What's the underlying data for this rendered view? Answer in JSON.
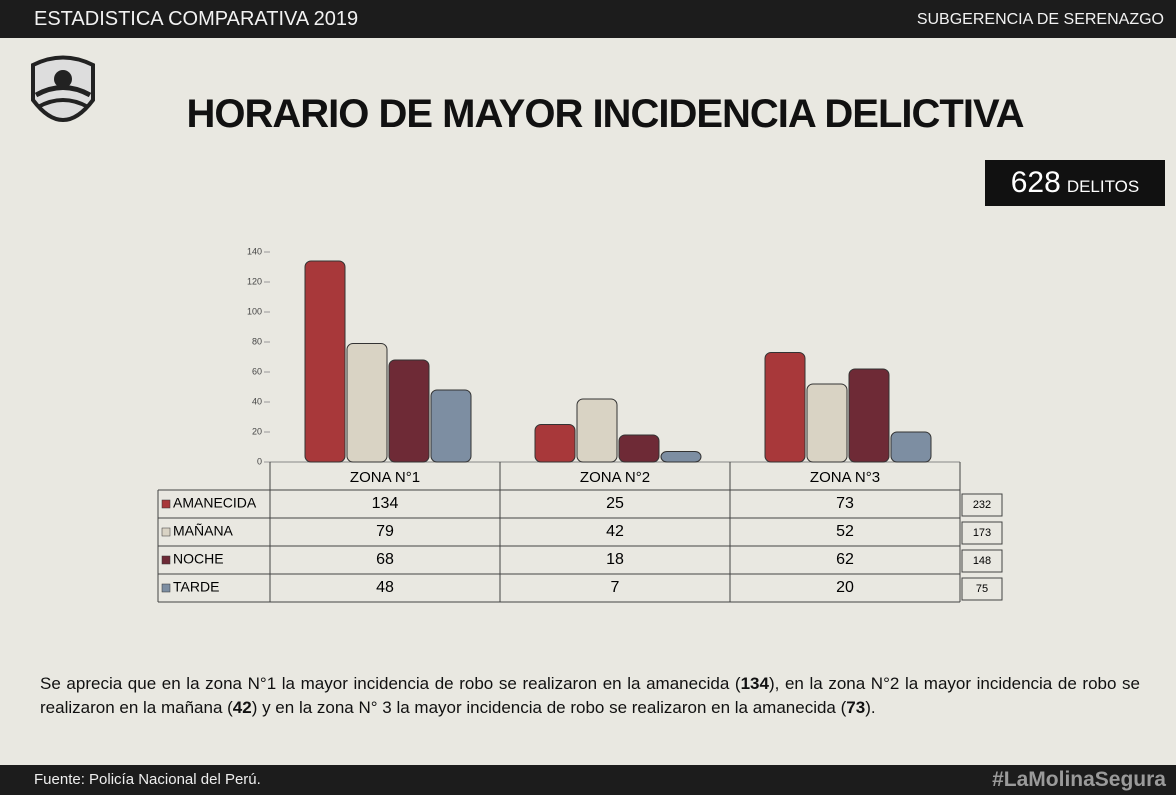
{
  "header": {
    "left": "ESTADISTICA COMPARATIVA 2019",
    "right": "SUBGERENCIA DE SERENAZGO"
  },
  "chart_data": {
    "type": "bar",
    "title": "HORARIO DE MAYOR INCIDENCIA DELICTIVA",
    "total": "628",
    "total_label": "DELITOS",
    "categories": [
      "ZONA N°1",
      "ZONA N°2",
      "ZONA N°3"
    ],
    "series": [
      {
        "name": "AMANECIDA",
        "color": "#a8383a",
        "values": [
          134,
          25,
          73
        ],
        "total": 232
      },
      {
        "name": "MAÑANA",
        "color": "#d9d3c4",
        "values": [
          79,
          42,
          52
        ],
        "total": 173
      },
      {
        "name": "NOCHE",
        "color": "#6e2a36",
        "values": [
          68,
          18,
          62
        ],
        "total": 148
      },
      {
        "name": "TARDE",
        "color": "#7d8ea2",
        "values": [
          48,
          7,
          20
        ],
        "total": 75
      }
    ],
    "ylim": [
      0,
      140
    ],
    "yticks": [
      0,
      20,
      40,
      60,
      80,
      100,
      120,
      140
    ]
  },
  "paragraph": [
    "Se aprecia que en la zona N°1 la mayor incidencia de robo se realizaron en la amanecida (",
    "134",
    "), en la zona N°2 la mayor incidencia de robo se realizaron en la mañana (",
    "42",
    ") y en la zona N° 3 la mayor incidencia de robo se realizaron en la amanecida (",
    "73",
    ")."
  ],
  "footer": {
    "left": "Fuente: Policía Nacional del Perú.",
    "right": "#LaMolinaSegura"
  }
}
